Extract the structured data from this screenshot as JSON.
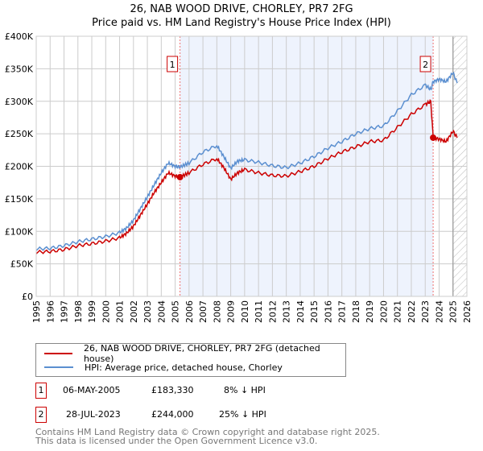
{
  "title_line1": "26, NAB WOOD DRIVE, CHORLEY, PR7 2FG",
  "title_line2": "Price paid vs. HM Land Registry's House Price Index (HPI)",
  "chart_data": {
    "type": "line",
    "xlim": [
      1995,
      2026
    ],
    "ylim": [
      0,
      400000
    ],
    "yticks": [
      0,
      50000,
      100000,
      150000,
      200000,
      250000,
      300000,
      350000,
      400000
    ],
    "ytick_labels": [
      "£0",
      "£50K",
      "£100K",
      "£150K",
      "£200K",
      "£250K",
      "£300K",
      "£350K",
      "£400K"
    ],
    "xticks": [
      1995,
      1996,
      1997,
      1998,
      1999,
      2000,
      2001,
      2002,
      2003,
      2004,
      2005,
      2006,
      2007,
      2008,
      2009,
      2010,
      2011,
      2012,
      2013,
      2014,
      2015,
      2016,
      2017,
      2018,
      2019,
      2020,
      2021,
      2022,
      2023,
      2024,
      2025,
      2026
    ],
    "grid": true,
    "shaded_range": [
      2005.35,
      2023.57
    ],
    "forecast_hatch_from": 2025.0,
    "series": [
      {
        "name": "26, NAB WOOD DRIVE, CHORLEY, PR7 2FG (detached house)",
        "color": "#cc0000",
        "x": [
          1995,
          1996,
          1997,
          1998,
          1999,
          2000,
          2001,
          2001.5,
          2002,
          2002.5,
          2003,
          2003.5,
          2004,
          2004.5,
          2005,
          2005.35,
          2006,
          2007,
          2008,
          2008.5,
          2009,
          2009.5,
          2010,
          2011,
          2012,
          2013,
          2014,
          2015,
          2016,
          2017,
          2018,
          2019,
          2020,
          2021,
          2022,
          2023,
          2023.4,
          2023.57,
          2024,
          2024.5,
          2025,
          2025.3
        ],
        "y": [
          68000,
          69000,
          72000,
          78000,
          81000,
          85000,
          90000,
          97000,
          108000,
          125000,
          142000,
          160000,
          175000,
          190000,
          185000,
          183330,
          190000,
          203000,
          212000,
          198000,
          180000,
          190000,
          195000,
          190000,
          186000,
          185000,
          192000,
          200000,
          212000,
          222000,
          230000,
          238000,
          240000,
          260000,
          280000,
          295000,
          300000,
          244000,
          242000,
          238000,
          254000,
          244000
        ]
      },
      {
        "name": "HPI: Average price, detached house, Chorley",
        "color": "#5b8fd0",
        "x": [
          1995,
          1996,
          1997,
          1998,
          1999,
          2000,
          2001,
          2001.5,
          2002,
          2002.5,
          2003,
          2003.5,
          2004,
          2004.5,
          2005,
          2005.35,
          2006,
          2007,
          2008,
          2008.5,
          2009,
          2009.5,
          2010,
          2011,
          2012,
          2013,
          2014,
          2015,
          2016,
          2017,
          2018,
          2019,
          2020,
          2021,
          2022,
          2023,
          2023.4,
          2023.57,
          2024,
          2024.5,
          2025,
          2025.3
        ],
        "y": [
          73000,
          74000,
          78000,
          84000,
          88000,
          92000,
          98000,
          105000,
          117000,
          135000,
          153000,
          172000,
          190000,
          205000,
          200000,
          199000,
          205000,
          222000,
          232000,
          215000,
          197000,
          208000,
          210000,
          206000,
          201000,
          198000,
          205000,
          215000,
          228000,
          238000,
          250000,
          258000,
          262000,
          285000,
          310000,
          325000,
          318000,
          330000,
          334000,
          330000,
          344000,
          328000
        ]
      }
    ],
    "sales": [
      {
        "label": "1",
        "x": 2005.35,
        "y": 183330
      },
      {
        "label": "2",
        "x": 2023.57,
        "y": 244000
      }
    ]
  },
  "legend": {
    "property": "26, NAB WOOD DRIVE, CHORLEY, PR7 2FG (detached house)",
    "hpi": "HPI: Average price, detached house, Chorley"
  },
  "transactions": [
    {
      "num": "1",
      "date": "06-MAY-2005",
      "price": "£183,330",
      "diff": "8% ↓ HPI"
    },
    {
      "num": "2",
      "date": "28-JUL-2023",
      "price": "£244,000",
      "diff": "25% ↓ HPI"
    }
  ],
  "footer_line1": "Contains HM Land Registry data © Crown copyright and database right 2025.",
  "footer_line2": "This data is licensed under the Open Government Licence v3.0."
}
